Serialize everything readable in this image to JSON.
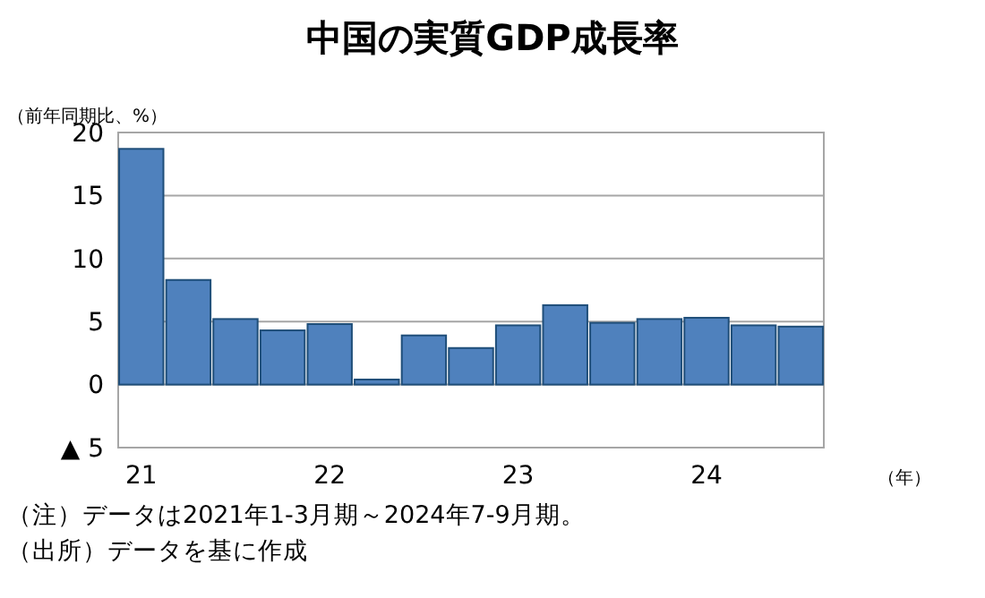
{
  "chart_data": {
    "type": "bar",
    "title": "中国の実質GDP成長率",
    "ylabel": "（前年同期比、%）",
    "xlabel": "（年）",
    "categories": [
      "21",
      null,
      null,
      null,
      "22",
      null,
      null,
      null,
      "23",
      null,
      null,
      null,
      "24",
      null,
      null
    ],
    "values": [
      18.7,
      8.3,
      5.2,
      4.3,
      4.8,
      0.4,
      3.9,
      2.9,
      4.7,
      6.3,
      4.9,
      5.2,
      5.3,
      4.7,
      4.6
    ],
    "color": "#4f81bd",
    "ylim": [
      -5,
      20
    ],
    "yticks": [
      {
        "value": -5,
        "label": "▲ 5"
      },
      0,
      5,
      10,
      15,
      20
    ],
    "grid": "y",
    "annotations": [
      "（注）データは2021年1-3月期～2024年7-9月期。",
      "（出所）データを基に作成"
    ]
  }
}
